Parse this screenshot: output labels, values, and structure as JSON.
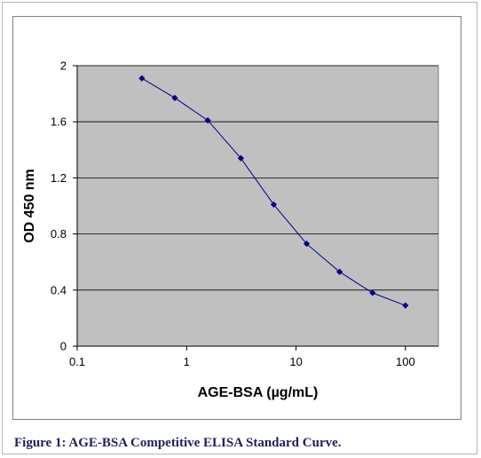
{
  "chart_data": {
    "type": "line",
    "xlabel": "AGE-BSA (µg/mL)",
    "ylabel": "OD 450 nm",
    "xscale": "log",
    "xlim": [
      0.1,
      200
    ],
    "ylim": [
      0,
      2
    ],
    "x_ticks": [
      0.1,
      1,
      10,
      100
    ],
    "x_tick_labels": [
      "0.1",
      "1",
      "10",
      "100"
    ],
    "y_ticks": [
      0,
      0.4,
      0.8,
      1.2,
      1.6,
      2
    ],
    "y_tick_labels": [
      "0",
      "0.4",
      "0.8",
      "1.2",
      "1.6",
      "2"
    ],
    "grid": "horizontal",
    "legend": "none",
    "plot_background": "#c0c0c0",
    "series": [
      {
        "color": "#000080",
        "marker": "diamond",
        "x": [
          0.39,
          0.78,
          1.56,
          3.13,
          6.25,
          12.5,
          25,
          50,
          100
        ],
        "y": [
          1.91,
          1.77,
          1.61,
          1.34,
          1.01,
          0.73,
          0.53,
          0.38,
          0.29
        ]
      }
    ]
  },
  "caption": "Figure 1: AGE-BSA Competitive ELISA Standard Curve."
}
